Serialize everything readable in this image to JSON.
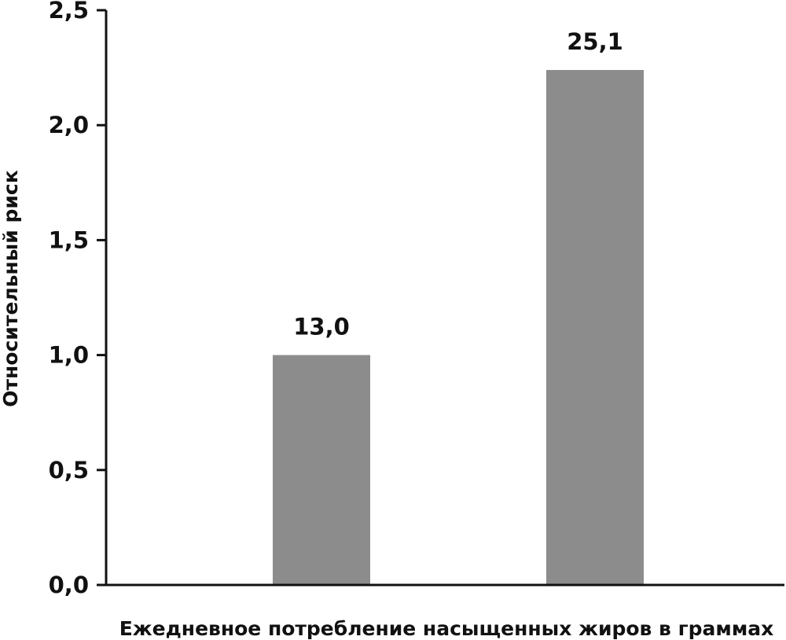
{
  "chart_data": {
    "type": "bar",
    "categories": [
      "13,0",
      "25,1"
    ],
    "values": [
      1.0,
      2.24
    ],
    "data_labels": [
      "13,0",
      "25,1"
    ],
    "xlabel": "Ежедневное потребление насыщенных жиров в граммах",
    "ylabel": "Относительный риск",
    "ylim": [
      0,
      2.5
    ],
    "yticks": [
      "0,0",
      "0,5",
      "1,0",
      "1,5",
      "2,0",
      "2,5"
    ],
    "ytick_values": [
      0,
      0.5,
      1.0,
      1.5,
      2.0,
      2.5
    ],
    "grid": false,
    "legend": "none",
    "bar_color": "#8c8c8c",
    "axis_color": "#111111"
  }
}
